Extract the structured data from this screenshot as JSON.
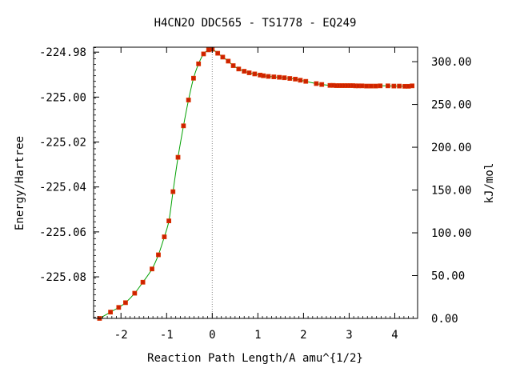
{
  "chart_data": {
    "type": "line",
    "title": "H4CN2O   DDC565 - TS1778 - EQ249",
    "xlabel": "Reaction Path Length/A amu^{1/2}",
    "ylabel": "Energy/Hartree",
    "y2label": "kJ/mol",
    "xlim": [
      -2.6,
      4.5
    ],
    "ylim": [
      -225.0985,
      -224.9778
    ],
    "y2lim": [
      0,
      316.9
    ],
    "grid": false,
    "xticks": [
      -2,
      -1,
      0,
      1,
      2,
      3,
      4
    ],
    "xtick_labels": [
      "-2",
      "-1",
      "0",
      "1",
      "2",
      "3",
      "4"
    ],
    "yticks": [
      -224.98,
      -225.0,
      -225.02,
      -225.04,
      -225.06,
      -225.08
    ],
    "ytick_labels": [
      "-224.98",
      "-225.00",
      "-225.02",
      "-225.04",
      "-225.06",
      "-225.08"
    ],
    "y2ticks": [
      0,
      50,
      100,
      150,
      200,
      250,
      300
    ],
    "y2tick_labels": [
      "0.00",
      "50.00",
      "100.00",
      "150.00",
      "200.00",
      "250.00",
      "300.00"
    ],
    "ts_marker_x": 0,
    "colors": {
      "line": "#00a000",
      "marker_fill": "#cc2200",
      "marker_edge": "#dd3300",
      "ts_line": "#888888",
      "axes": "#000000"
    },
    "series": [
      {
        "x": [
          -2.47,
          -2.23,
          -2.05,
          -1.9,
          -1.7,
          -1.52,
          -1.32,
          -1.18,
          -1.05,
          -0.95,
          -0.86,
          -0.75,
          -0.63,
          -0.52,
          -0.41,
          -0.3,
          -0.19,
          -0.08,
          0.0,
          0.12,
          0.23,
          0.35,
          0.46,
          0.58,
          0.7,
          0.81,
          0.93,
          1.05,
          1.12,
          1.23,
          1.35,
          1.47,
          1.58,
          1.7,
          1.82,
          1.93,
          2.05,
          2.28,
          2.4,
          2.58,
          2.65,
          2.72,
          2.78,
          2.84,
          2.9,
          2.96,
          3.02,
          3.08,
          3.14,
          3.2,
          3.28,
          3.38,
          3.48,
          3.58,
          3.68,
          3.85,
          3.98,
          4.1,
          4.22,
          4.3,
          4.38
        ],
        "values": [
          -225.0985,
          -225.0957,
          -225.0936,
          -225.0915,
          -225.0873,
          -225.0824,
          -225.0765,
          -225.0702,
          -225.0622,
          -225.0551,
          -225.0421,
          -225.0268,
          -225.0128,
          -225.0013,
          -224.9916,
          -224.9852,
          -224.9808,
          -224.979,
          -224.9787,
          -224.9805,
          -224.9822,
          -224.984,
          -224.986,
          -224.9875,
          -224.9885,
          -224.9892,
          -224.9897,
          -224.9902,
          -224.9905,
          -224.9908,
          -224.991,
          -224.9912,
          -224.9914,
          -224.9917,
          -224.992,
          -224.9925,
          -224.993,
          -224.994,
          -224.9944,
          -224.9948,
          -224.9948,
          -224.9949,
          -224.9949,
          -224.9949,
          -224.9949,
          -224.9949,
          -224.9949,
          -224.9949,
          -224.995,
          -224.995,
          -224.995,
          -224.9951,
          -224.9951,
          -224.9951,
          -224.995,
          -224.995,
          -224.9951,
          -224.9951,
          -224.9952,
          -224.9952,
          -224.995
        ]
      }
    ]
  }
}
